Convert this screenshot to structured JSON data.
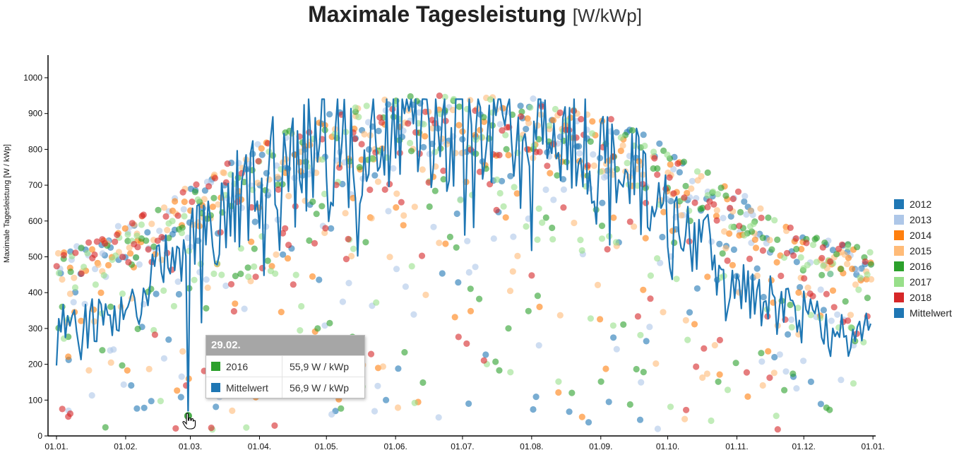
{
  "title": {
    "main": "Maximale Tagesleistung",
    "unit": "[W/kWp]"
  },
  "chart_data": {
    "type": "scatter",
    "title": "Maximale Tagesleistung [W/kWp]",
    "xlabel": "",
    "ylabel": "Maximale Tagesleistung [W / kWp]",
    "ylim": [
      0,
      1050
    ],
    "xlim_days": [
      0,
      365
    ],
    "yticks": [
      "0",
      "100",
      "200",
      "300",
      "400",
      "500",
      "600",
      "700",
      "800",
      "900",
      "1000"
    ],
    "ytick_values": [
      0,
      100,
      200,
      300,
      400,
      500,
      600,
      700,
      800,
      900,
      1000
    ],
    "xticks": [
      "01.01.",
      "01.02.",
      "01.03.",
      "01.04.",
      "01.05.",
      "01.06.",
      "01.07.",
      "01.08.",
      "01.09.",
      "01.10.",
      "01.11.",
      "01.12.",
      "01.01."
    ],
    "xtick_days": [
      0,
      31,
      60,
      91,
      121,
      152,
      182,
      213,
      244,
      274,
      305,
      335,
      366
    ],
    "legend_position": "right",
    "series": [
      {
        "name": "2012",
        "color": "#1f77b4",
        "seed": 12
      },
      {
        "name": "2013",
        "color": "#aec7e8",
        "seed": 13
      },
      {
        "name": "2014",
        "color": "#ff7f0e",
        "seed": 14
      },
      {
        "name": "2015",
        "color": "#ffbb78",
        "seed": 15
      },
      {
        "name": "2016",
        "color": "#2ca02c",
        "seed": 16
      },
      {
        "name": "2017",
        "color": "#98df8a",
        "seed": 17
      },
      {
        "name": "2018",
        "color": "#d62728",
        "seed": 18
      },
      {
        "name": "Mittelwert",
        "color": "#1f77b4",
        "type": "line"
      }
    ],
    "envelope_by_month_start": [
      520,
      600,
      700,
      820,
      900,
      950,
      955,
      945,
      900,
      810,
      680,
      560,
      520
    ],
    "mittelwert_smooth_by_month_start": [
      300,
      340,
      540,
      720,
      820,
      845,
      850,
      835,
      790,
      640,
      420,
      330,
      300
    ]
  },
  "tooltip": {
    "title": "29.02.",
    "rows": [
      {
        "label": "2016",
        "value": "55,9 W / kWp",
        "color": "#2ca02c"
      },
      {
        "label": "Mittelwert",
        "value": "56,9 W / kWp",
        "color": "#1f77b4"
      }
    ]
  }
}
